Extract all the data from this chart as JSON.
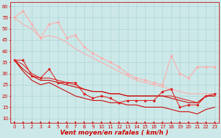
{
  "background_color": "#cde8e8",
  "grid_color": "#b0d8d8",
  "xlabel": "Vent moyen/en rafales ( km/h )",
  "xlim": [
    -0.5,
    23.5
  ],
  "ylim": [
    8,
    62
  ],
  "yticks": [
    10,
    15,
    20,
    25,
    30,
    35,
    40,
    45,
    50,
    55,
    60
  ],
  "xticks": [
    0,
    1,
    2,
    3,
    4,
    5,
    6,
    7,
    8,
    9,
    10,
    11,
    12,
    13,
    14,
    15,
    16,
    17,
    18,
    19,
    20,
    21,
    22,
    23
  ],
  "series": [
    {
      "y": [
        55,
        58,
        52,
        46,
        52,
        53,
        46,
        47,
        42,
        39,
        37,
        35,
        33,
        30,
        28,
        27,
        26,
        25,
        38,
        30,
        28,
        33,
        33,
        33
      ],
      "color": "#ffaaaa",
      "lw": 0.8,
      "marker": "s",
      "ms": 2.0,
      "zorder": 2
    },
    {
      "y": [
        55,
        52,
        50,
        46,
        47,
        46,
        44,
        41,
        39,
        37,
        35,
        33,
        31,
        29,
        27,
        26,
        25,
        24,
        23,
        22,
        21,
        21,
        21,
        21
      ],
      "color": "#ffaaaa",
      "lw": 0.8,
      "marker": null,
      "ms": 0,
      "zorder": 2
    },
    {
      "y": [
        36,
        36,
        29,
        28,
        32,
        26,
        26,
        26,
        21,
        19,
        20,
        19,
        17,
        18,
        18,
        18,
        18,
        22,
        23,
        15,
        16,
        16,
        20,
        21
      ],
      "color": "#dd2222",
      "lw": 0.8,
      "marker": "s",
      "ms": 2.0,
      "zorder": 4
    },
    {
      "y": [
        36,
        34,
        30,
        28,
        28,
        27,
        26,
        25,
        23,
        22,
        22,
        21,
        21,
        20,
        20,
        20,
        20,
        20,
        20,
        19,
        18,
        17,
        20,
        20
      ],
      "color": "#dd2222",
      "lw": 0.8,
      "marker": null,
      "ms": 0,
      "zorder": 3
    },
    {
      "y": [
        36,
        32,
        29,
        27,
        27,
        26,
        25,
        24,
        23,
        22,
        22,
        21,
        21,
        20,
        20,
        20,
        20,
        20,
        19,
        18,
        17,
        17,
        20,
        20
      ],
      "color": "#cc0000",
      "lw": 0.8,
      "marker": null,
      "ms": 0,
      "zorder": 3
    },
    {
      "y": [
        36,
        31,
        27,
        25,
        26,
        24,
        22,
        20,
        19,
        18,
        18,
        17,
        17,
        16,
        16,
        15,
        15,
        15,
        14,
        13,
        13,
        12,
        14,
        15
      ],
      "color": "#cc0000",
      "lw": 0.8,
      "marker": null,
      "ms": 0,
      "zorder": 3
    }
  ],
  "arrow_color": "#cc0000",
  "xlabel_color": "#cc0000",
  "tick_color": "#cc0000",
  "xlabel_fontsize": 6.5,
  "tick_fontsize": 5.0
}
